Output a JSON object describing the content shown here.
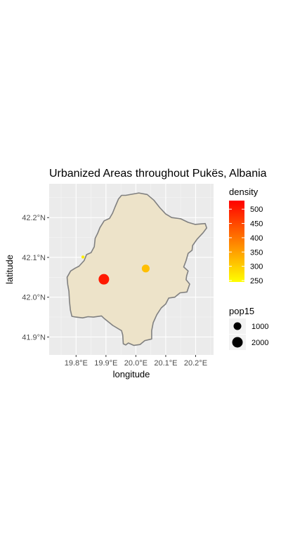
{
  "chart_data": {
    "type": "map",
    "title": "Urbanized Areas throughout Pukës, Albania",
    "xlabel": "longitude",
    "ylabel": "latitude",
    "xlim": [
      19.71,
      20.26
    ],
    "ylim": [
      41.855,
      42.285
    ],
    "x_ticks": [
      {
        "value": 19.8,
        "label": "19.8°E"
      },
      {
        "value": 19.9,
        "label": "19.9°E"
      },
      {
        "value": 20.0,
        "label": "20.0°E"
      },
      {
        "value": 20.1,
        "label": "20.1°E"
      },
      {
        "value": 20.2,
        "label": "20.2°E"
      }
    ],
    "y_ticks": [
      {
        "value": 41.9,
        "label": "41.9°N"
      },
      {
        "value": 42.0,
        "label": "42.0°N"
      },
      {
        "value": 42.1,
        "label": "42.1°N"
      },
      {
        "value": 42.2,
        "label": "42.2°N"
      }
    ],
    "panel_background": "#ebebeb",
    "grid": true,
    "boundary": {
      "fill": "#ede3c9",
      "stroke": "#808080",
      "points": [
        [
          19.966,
          42.256
        ],
        [
          20.01,
          42.262
        ],
        [
          20.038,
          42.258
        ],
        [
          20.06,
          42.244
        ],
        [
          20.08,
          42.225
        ],
        [
          20.1,
          42.209
        ],
        [
          20.12,
          42.2
        ],
        [
          20.15,
          42.197
        ],
        [
          20.175,
          42.188
        ],
        [
          20.198,
          42.183
        ],
        [
          20.232,
          42.185
        ],
        [
          20.237,
          42.174
        ],
        [
          20.225,
          42.162
        ],
        [
          20.205,
          42.146
        ],
        [
          20.19,
          42.13
        ],
        [
          20.188,
          42.118
        ],
        [
          20.175,
          42.11
        ],
        [
          20.168,
          42.092
        ],
        [
          20.16,
          42.076
        ],
        [
          20.175,
          42.066
        ],
        [
          20.17,
          42.054
        ],
        [
          20.168,
          42.044
        ],
        [
          20.18,
          42.033
        ],
        [
          20.171,
          42.013
        ],
        [
          20.148,
          42.011
        ],
        [
          20.13,
          42.0
        ],
        [
          20.11,
          41.998
        ],
        [
          20.1,
          41.983
        ],
        [
          20.085,
          41.973
        ],
        [
          20.07,
          41.956
        ],
        [
          20.058,
          41.936
        ],
        [
          20.053,
          41.916
        ],
        [
          20.053,
          41.895
        ],
        [
          20.03,
          41.891
        ],
        [
          20.014,
          41.881
        ],
        [
          19.993,
          41.879
        ],
        [
          19.975,
          41.885
        ],
        [
          19.966,
          41.88
        ],
        [
          19.958,
          41.883
        ],
        [
          19.956,
          41.905
        ],
        [
          19.952,
          41.916
        ],
        [
          19.923,
          41.929
        ],
        [
          19.895,
          41.946
        ],
        [
          19.885,
          41.953
        ],
        [
          19.858,
          41.95
        ],
        [
          19.84,
          41.951
        ],
        [
          19.822,
          41.948
        ],
        [
          19.8,
          41.95
        ],
        [
          19.786,
          41.952
        ],
        [
          19.781,
          41.968
        ],
        [
          19.778,
          41.99
        ],
        [
          19.776,
          42.015
        ],
        [
          19.772,
          42.032
        ],
        [
          19.77,
          42.05
        ],
        [
          19.782,
          42.066
        ],
        [
          19.797,
          42.073
        ],
        [
          19.81,
          42.078
        ],
        [
          19.827,
          42.092
        ],
        [
          19.835,
          42.107
        ],
        [
          19.85,
          42.112
        ],
        [
          19.861,
          42.127
        ],
        [
          19.864,
          42.148
        ],
        [
          19.872,
          42.16
        ],
        [
          19.88,
          42.175
        ],
        [
          19.894,
          42.192
        ],
        [
          19.912,
          42.198
        ],
        [
          19.922,
          42.211
        ],
        [
          19.93,
          42.226
        ],
        [
          19.942,
          42.247
        ],
        [
          19.952,
          42.256
        ]
      ]
    },
    "points": [
      {
        "lon": 19.893,
        "lat": 42.045,
        "pop15": 2000,
        "density": 520,
        "color": "#ff1a00"
      },
      {
        "lon": 20.033,
        "lat": 42.072,
        "pop15": 1100,
        "density": 300,
        "color": "#ffbf00"
      },
      {
        "lon": 19.823,
        "lat": 42.101,
        "pop15": 60,
        "density": 255,
        "color": "#ffee00"
      }
    ],
    "color_legend": {
      "title": "density",
      "labels": [
        "500",
        "450",
        "400",
        "350",
        "300",
        "250"
      ],
      "values": [
        500,
        450,
        400,
        350,
        300,
        250
      ],
      "range": [
        245,
        530
      ],
      "low_color": "#ffff00",
      "high_color": "#ff0000"
    },
    "size_legend": {
      "title": "pop15",
      "labels": [
        "1000",
        "2000"
      ],
      "values": [
        1000,
        2000
      ]
    }
  }
}
